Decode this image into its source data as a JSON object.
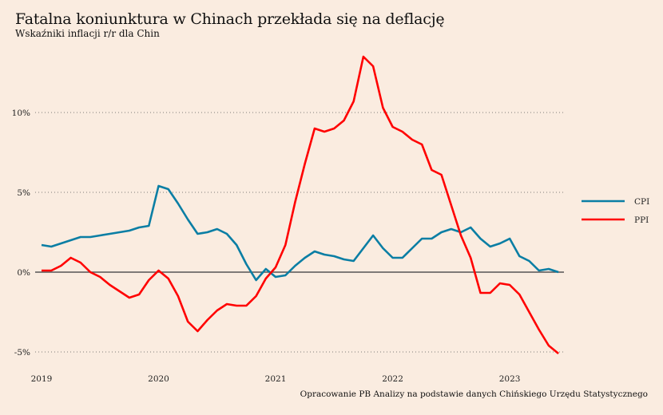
{
  "chart_data": {
    "type": "line",
    "title": "Fatalna koniunktura w Chinach przekłada się na deflację",
    "subtitle": "Wskaźniki inflacji r/r dla Chin",
    "source": "Opracowanie PB Analizy na podstawie danych Chińskiego Urzędu Statystycznego",
    "x_start": "2019-01",
    "x_end": "2023-06",
    "x_ticks": [
      "2019",
      "2020",
      "2021",
      "2022",
      "2023"
    ],
    "y_ticks": [
      -5,
      0,
      5,
      10
    ],
    "y_tick_labels": [
      "-5%",
      "0%",
      "5%",
      "10%"
    ],
    "ylim": [
      -6,
      14
    ],
    "grid": "horizontal dotted",
    "legend": "right",
    "series": [
      {
        "name": "CPI",
        "color": "#0a7ea4",
        "values": [
          1.7,
          1.6,
          1.8,
          2.0,
          2.2,
          2.2,
          2.3,
          2.4,
          2.5,
          2.6,
          2.8,
          2.9,
          5.4,
          5.2,
          4.3,
          3.3,
          2.4,
          2.5,
          2.7,
          2.4,
          1.7,
          0.5,
          -0.5,
          0.2,
          -0.3,
          -0.2,
          0.4,
          0.9,
          1.3,
          1.1,
          1.0,
          0.8,
          0.7,
          1.5,
          2.3,
          1.5,
          0.9,
          0.9,
          1.5,
          2.1,
          2.1,
          2.5,
          2.7,
          2.5,
          2.8,
          2.1,
          1.6,
          1.8,
          2.1,
          1.0,
          0.7,
          0.1,
          0.2,
          0.0
        ]
      },
      {
        "name": "PPI",
        "color": "#ff0000",
        "values": [
          0.1,
          0.1,
          0.4,
          0.9,
          0.6,
          0.0,
          -0.3,
          -0.8,
          -1.2,
          -1.6,
          -1.4,
          -0.5,
          0.1,
          -0.4,
          -1.5,
          -3.1,
          -3.7,
          -3.0,
          -2.4,
          -2.0,
          -2.1,
          -2.1,
          -1.5,
          -0.4,
          0.3,
          1.7,
          4.4,
          6.8,
          9.0,
          8.8,
          9.0,
          9.5,
          10.7,
          13.5,
          12.9,
          10.3,
          9.1,
          8.8,
          8.3,
          8.0,
          6.4,
          6.1,
          4.2,
          2.3,
          0.9,
          -1.3,
          -1.3,
          -0.7,
          -0.8,
          -1.4,
          -2.5,
          -3.6,
          -4.6,
          -5.1
        ]
      }
    ]
  }
}
